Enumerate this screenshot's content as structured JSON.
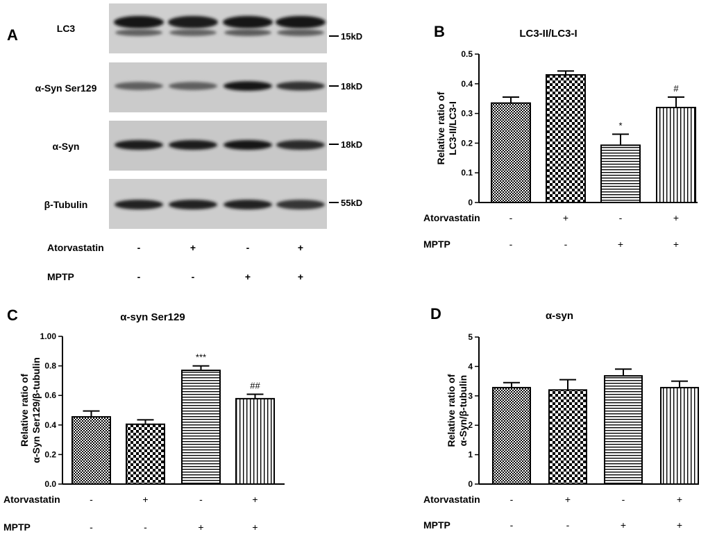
{
  "blot": {
    "letter": "A",
    "lanes": 4,
    "rows": [
      {
        "label": "LC3",
        "kd": "15kD",
        "intensity": [
          0.95,
          0.92,
          0.98,
          0.96
        ]
      },
      {
        "label": "α-Syn Ser129",
        "kd": "18kD",
        "intensity": [
          0.55,
          0.55,
          0.95,
          0.8
        ]
      },
      {
        "label": "α-Syn",
        "kd": "18kD",
        "intensity": [
          0.92,
          0.92,
          0.95,
          0.85
        ]
      },
      {
        "label": "β-Tubulin",
        "kd": "55kD",
        "intensity": [
          0.9,
          0.88,
          0.9,
          0.78
        ]
      }
    ],
    "treatments": [
      {
        "label": "Atorvastatin",
        "signs": [
          "-",
          "+",
          "-",
          "+"
        ]
      },
      {
        "label": "MPTP",
        "signs": [
          "-",
          "-",
          "+",
          "+"
        ]
      }
    ]
  },
  "chart_data": [
    {
      "id": "B",
      "letter": "B",
      "type": "bar",
      "title": "LC3-II/LC3-I",
      "ylabel": [
        "Relative ratio of",
        "LC3-II/LC3-I"
      ],
      "ylim": [
        0,
        0.5
      ],
      "yticks": [
        0,
        0.1,
        0.2,
        0.3,
        0.4,
        0.5
      ],
      "ytick_labels": [
        "0",
        "0.1",
        "0.2",
        "0.3",
        "0.4",
        "0.5"
      ],
      "values": [
        0.335,
        0.43,
        0.193,
        0.32
      ],
      "errors": [
        0.02,
        0.013,
        0.037,
        0.035
      ],
      "annotations": [
        "",
        "",
        "*",
        "#"
      ],
      "patterns": [
        "checker-fine",
        "checker-coarse",
        "hstripes",
        "vstripes"
      ],
      "treatments": [
        {
          "label": "Atorvastatin",
          "signs": [
            "-",
            "+",
            "-",
            "+"
          ]
        },
        {
          "label": "MPTP",
          "signs": [
            "-",
            "-",
            "+",
            "+"
          ]
        }
      ]
    },
    {
      "id": "C",
      "letter": "C",
      "type": "bar",
      "title": "α-syn Ser129",
      "ylabel": [
        "Relative ratio of",
        "α-Syn Ser129/β-tubulin"
      ],
      "ylim": [
        0,
        1.0
      ],
      "yticks": [
        0,
        0.2,
        0.4,
        0.6,
        0.8,
        1.0
      ],
      "ytick_labels": [
        "0.0",
        "0.2",
        "0.4",
        "0.6",
        "0.8",
        "1.00"
      ],
      "values": [
        0.455,
        0.405,
        0.77,
        0.578
      ],
      "errors": [
        0.04,
        0.03,
        0.03,
        0.03
      ],
      "annotations": [
        "",
        "",
        "***",
        "##"
      ],
      "patterns": [
        "checker-fine",
        "checker-coarse",
        "hstripes",
        "vstripes"
      ],
      "treatments": [
        {
          "label": "Atorvastatin",
          "signs": [
            "-",
            "+",
            "-",
            "+"
          ]
        },
        {
          "label": "MPTP",
          "signs": [
            "-",
            "-",
            "+",
            "+"
          ]
        }
      ]
    },
    {
      "id": "D",
      "letter": "D",
      "type": "bar",
      "title": "α-syn",
      "ylabel": [
        "Relative ratio of",
        "α-Syn/β-tubulin"
      ],
      "ylim": [
        0,
        5
      ],
      "yticks": [
        0,
        1,
        2,
        3,
        4,
        5
      ],
      "ytick_labels": [
        "0",
        "1",
        "2",
        "3",
        "4",
        "5"
      ],
      "values": [
        3.28,
        3.2,
        3.68,
        3.28
      ],
      "errors": [
        0.17,
        0.35,
        0.23,
        0.22
      ],
      "annotations": [
        "",
        "",
        "",
        ""
      ],
      "patterns": [
        "checker-fine",
        "checker-coarse",
        "hstripes",
        "vstripes"
      ],
      "treatments": [
        {
          "label": "Atorvastatin",
          "signs": [
            "-",
            "+",
            "-",
            "+"
          ]
        },
        {
          "label": "MPTP",
          "signs": [
            "-",
            "-",
            "+",
            "+"
          ]
        }
      ]
    }
  ]
}
